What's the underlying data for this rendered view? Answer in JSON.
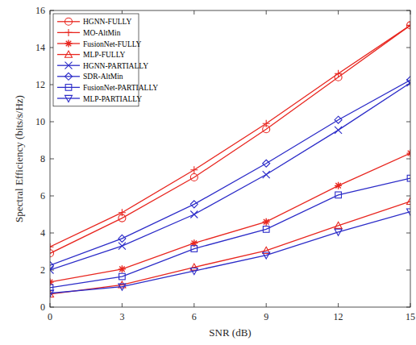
{
  "chart_data": {
    "type": "line",
    "x_label": "SNR (dB)",
    "y_label": "Spectral Efficiency (bits/s/Hz)",
    "x": [
      0,
      3,
      6,
      9,
      12,
      15
    ],
    "xlim": [
      0,
      15
    ],
    "xticks": [
      0,
      3,
      6,
      9,
      12,
      15
    ],
    "ylim": [
      0,
      16
    ],
    "yticks": [
      0,
      2,
      4,
      6,
      8,
      10,
      12,
      14,
      16
    ],
    "grid": false,
    "legend": "upper left",
    "series": [
      {
        "name": "HGNN-FULLY",
        "color": "#e8261f",
        "marker": "circle",
        "values": [
          2.9,
          4.8,
          7.0,
          9.6,
          12.4,
          15.2
        ]
      },
      {
        "name": "MO-AltMin",
        "color": "#e8261f",
        "marker": "plus",
        "values": [
          3.25,
          5.1,
          7.4,
          9.9,
          12.6,
          15.2
        ]
      },
      {
        "name": "FusionNet-FULLY",
        "color": "#e8261f",
        "marker": "asterisk",
        "values": [
          1.35,
          2.05,
          3.45,
          4.6,
          6.55,
          8.3
        ]
      },
      {
        "name": "MLP-FULLY",
        "color": "#e8261f",
        "marker": "triangle",
        "values": [
          0.7,
          1.2,
          2.15,
          3.05,
          4.4,
          5.7
        ]
      },
      {
        "name": "HGNN-PARTIALLY",
        "color": "#2b2bc8",
        "marker": "x",
        "values": [
          2.0,
          3.3,
          5.0,
          7.15,
          9.55,
          12.1
        ]
      },
      {
        "name": "SDR-AltMin",
        "color": "#2b2bc8",
        "marker": "diamond",
        "values": [
          2.25,
          3.7,
          5.55,
          7.75,
          10.1,
          12.25
        ]
      },
      {
        "name": "FusionNet-PARTIALLY",
        "color": "#2b2bc8",
        "marker": "square",
        "values": [
          1.05,
          1.65,
          3.15,
          4.2,
          6.05,
          6.95
        ]
      },
      {
        "name": "MLP-PARTIALLY",
        "color": "#2b2bc8",
        "marker": "triangle-down",
        "values": [
          0.75,
          1.1,
          1.95,
          2.8,
          4.05,
          5.15
        ]
      }
    ]
  }
}
